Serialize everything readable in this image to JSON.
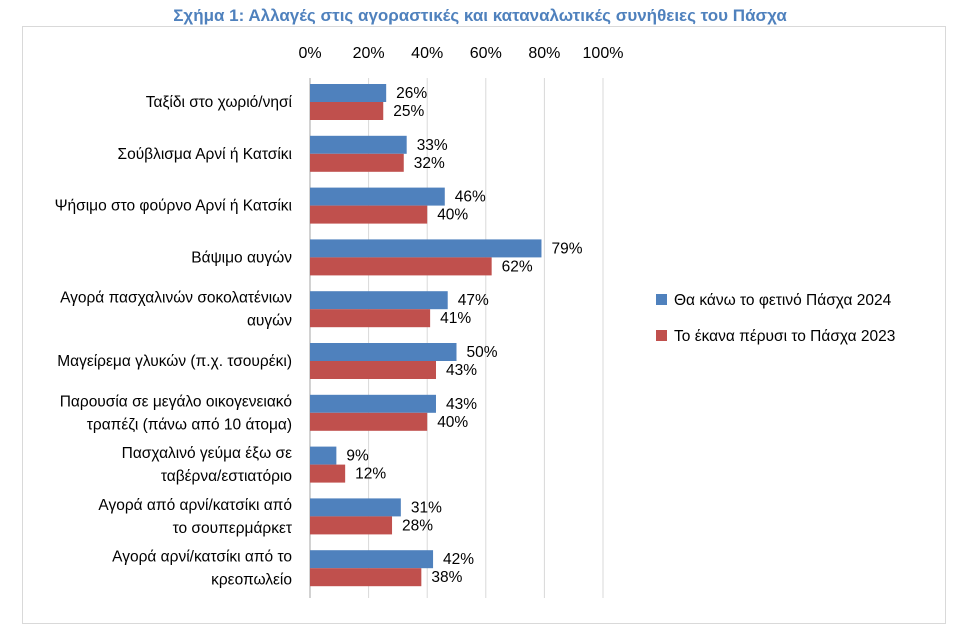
{
  "title": "Σχήμα 1: Αλλαγές στις αγοραστικές και καταναλωτικές συνήθειες του Πάσχα",
  "chart_data": {
    "type": "bar",
    "orientation": "horizontal",
    "categories": [
      [
        "Ταξίδι στο χωριό/νησί"
      ],
      [
        "Σούβλισμα Αρνί ή Κατσίκι"
      ],
      [
        "Ψήσιμο στο φούρνο Αρνί ή Κατσίκι"
      ],
      [
        "Βάψιμο αυγών"
      ],
      [
        "Αγορά πασχαλινών σοκολατένιων",
        "αυγών"
      ],
      [
        "Μαγείρεμα γλυκών (π.χ. τσουρέκι)"
      ],
      [
        "Παρουσία σε μεγάλο οικογενειακό",
        "τραπέζι (πάνω από 10 άτομα)"
      ],
      [
        "Πασχαλινό γεύμα έξω σε",
        "ταβέρνα/εστιατόριο"
      ],
      [
        "Αγορά από αρνί/κατσίκι από",
        "το σουπερμάρκετ"
      ],
      [
        "Αγορά αρνί/κατσίκι από το",
        "κρεοπωλείο"
      ]
    ],
    "series": [
      {
        "name": "Θα κάνω το φετινό Πάσχα 2024",
        "color": "#4f81bd",
        "values": [
          26,
          33,
          46,
          79,
          47,
          50,
          43,
          9,
          31,
          42
        ]
      },
      {
        "name": "Το έκανα πέρυσι το Πάσχα 2023",
        "color": "#c0504d",
        "values": [
          25,
          32,
          40,
          62,
          41,
          43,
          40,
          12,
          28,
          38
        ]
      }
    ],
    "xlim": [
      0,
      100
    ],
    "xticks": [
      "0%",
      "20%",
      "40%",
      "60%",
      "80%",
      "100%"
    ],
    "value_suffix": "%",
    "grid": true,
    "xaxis_position": "top",
    "legend_position": "right"
  }
}
